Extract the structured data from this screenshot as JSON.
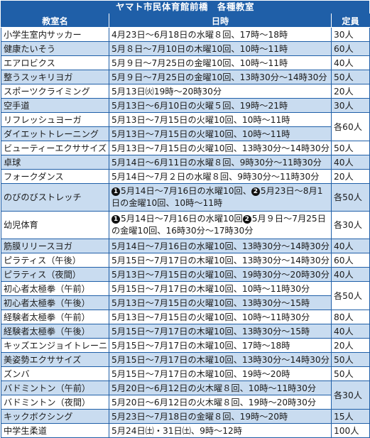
{
  "title": "ヤマト市民体育館前橋　各種教室",
  "headers": {
    "name": "教室名",
    "schedule": "日時",
    "capacity": "定員"
  },
  "rows": [
    {
      "name": "小学生室内サッカー",
      "schedule": "4月23日～6月18日の水曜８回、17時～18時",
      "capacity": "30人"
    },
    {
      "name": "健康たいそう",
      "schedule": "5月８日～7月10日の木曜10回、10時～11時",
      "capacity": "60人"
    },
    {
      "name": "エアロビクス",
      "schedule": "5月９日～7月25日の金曜10回、10時～11時",
      "capacity": "40人"
    },
    {
      "name": "整うスッキリヨガ",
      "schedule": "5月９日～7月25日の金曜10回、13時30分～14時30分",
      "capacity": "50人"
    },
    {
      "name": "スポーツクライミング",
      "schedule": "5月13日㈫19時～20時30分",
      "capacity": "20人"
    },
    {
      "name": "空手道",
      "schedule": "5月13日～6月10日の火曜５回、19時～21時",
      "capacity": "30人"
    },
    {
      "name": "リフレッシュヨーガ",
      "schedule": "5月13日～7月15日の火曜10回、10時～11時",
      "capacity": "各60人"
    },
    {
      "name": "ダイエットトレーニング",
      "schedule": "5月13日～7月15日の火曜10回、10時～11時",
      "capacity": ""
    },
    {
      "name": "ビューティーエクササイズ",
      "schedule": "5月13日～7月15日の火曜10回、13時30分～14時30分",
      "capacity": "50人"
    },
    {
      "name": "卓球",
      "schedule": "5月14日～6月11日の水曜８回、9時30分～11時30分",
      "capacity": "40人"
    },
    {
      "name": "フォークダンス",
      "schedule": "5月14日～7月２日の水曜８回、9時30分～11時30分",
      "capacity": "20人"
    },
    {
      "name": "のびのびストレッチ",
      "schedule_parts": [
        {
          "mark": "1",
          "text": "5月14日～7月16日の水曜10回、"
        },
        {
          "mark": "2",
          "text": "5月23日～8月1日の金曜10回、10時～11時"
        }
      ],
      "capacity": "各50人"
    },
    {
      "name": "幼児体育",
      "schedule_parts": [
        {
          "mark": "1",
          "text": "5月14日～7月16日の水曜10回"
        },
        {
          "mark": "2",
          "text": "5月９日～7月25日の金曜10回、16時30分～17時30分"
        }
      ],
      "capacity": "各30人"
    },
    {
      "name": "筋膜リリースヨガ",
      "schedule": "5月14日～7月16日の水曜10回、13時30分～14時30分",
      "capacity": "40人"
    },
    {
      "name": "ピラティス（午後）",
      "schedule": "5月15日～7月17日の木曜10回、13時30分～14時30分",
      "capacity": "60人"
    },
    {
      "name": "ピラティス（夜間）",
      "schedule": "5月13日～7月15日の火曜10回、19時30分～20時30分",
      "capacity": "40人"
    },
    {
      "name": "初心者太極拳（午前）",
      "schedule": "5月15日～7月17日の木曜10回、10時～11時30分",
      "capacity": "各50人"
    },
    {
      "name": "初心者太極拳（午後）",
      "schedule": "5月13日～7月15日の火曜10回、13時30分～15時",
      "capacity": ""
    },
    {
      "name": "経験者太極拳（午前）",
      "schedule": "5月13日～7月15日の火曜10回、10時～11時30分",
      "capacity": "80人"
    },
    {
      "name": "経験者太極拳（午後）",
      "schedule": "5月15日～7月17日の木曜10回、13時30分～15時",
      "capacity": "40人"
    },
    {
      "name": "キッズエンジョイトレーニング",
      "schedule": "5月15日～7月17日の木曜10回、17時～18時",
      "capacity": "20人"
    },
    {
      "name": "美姿勢エクササイズ",
      "schedule": "5月15日～7月17日の木曜10回、13時30分～14時30分",
      "capacity": "50人"
    },
    {
      "name": "ズンバ",
      "schedule": "5月15日～7月17日の木曜10回、19時～20時",
      "capacity": "50人"
    },
    {
      "name": "バドミントン（午前）",
      "schedule": "5月20日～6月12日の火木曜８回、10時～11時30分",
      "capacity": "各30人"
    },
    {
      "name": "バドミントン（夜間）",
      "schedule": "5月20日～6月12日の火木曜８回、19時～20時30分",
      "capacity": ""
    },
    {
      "name": "キックボクシング",
      "schedule": "5月23日～7月18日の金曜８回、19時～20時",
      "capacity": "15人"
    },
    {
      "name": "中学生柔道",
      "schedule": "5月24日㈯・31日㈯、9時～12時",
      "capacity": "100人"
    }
  ]
}
